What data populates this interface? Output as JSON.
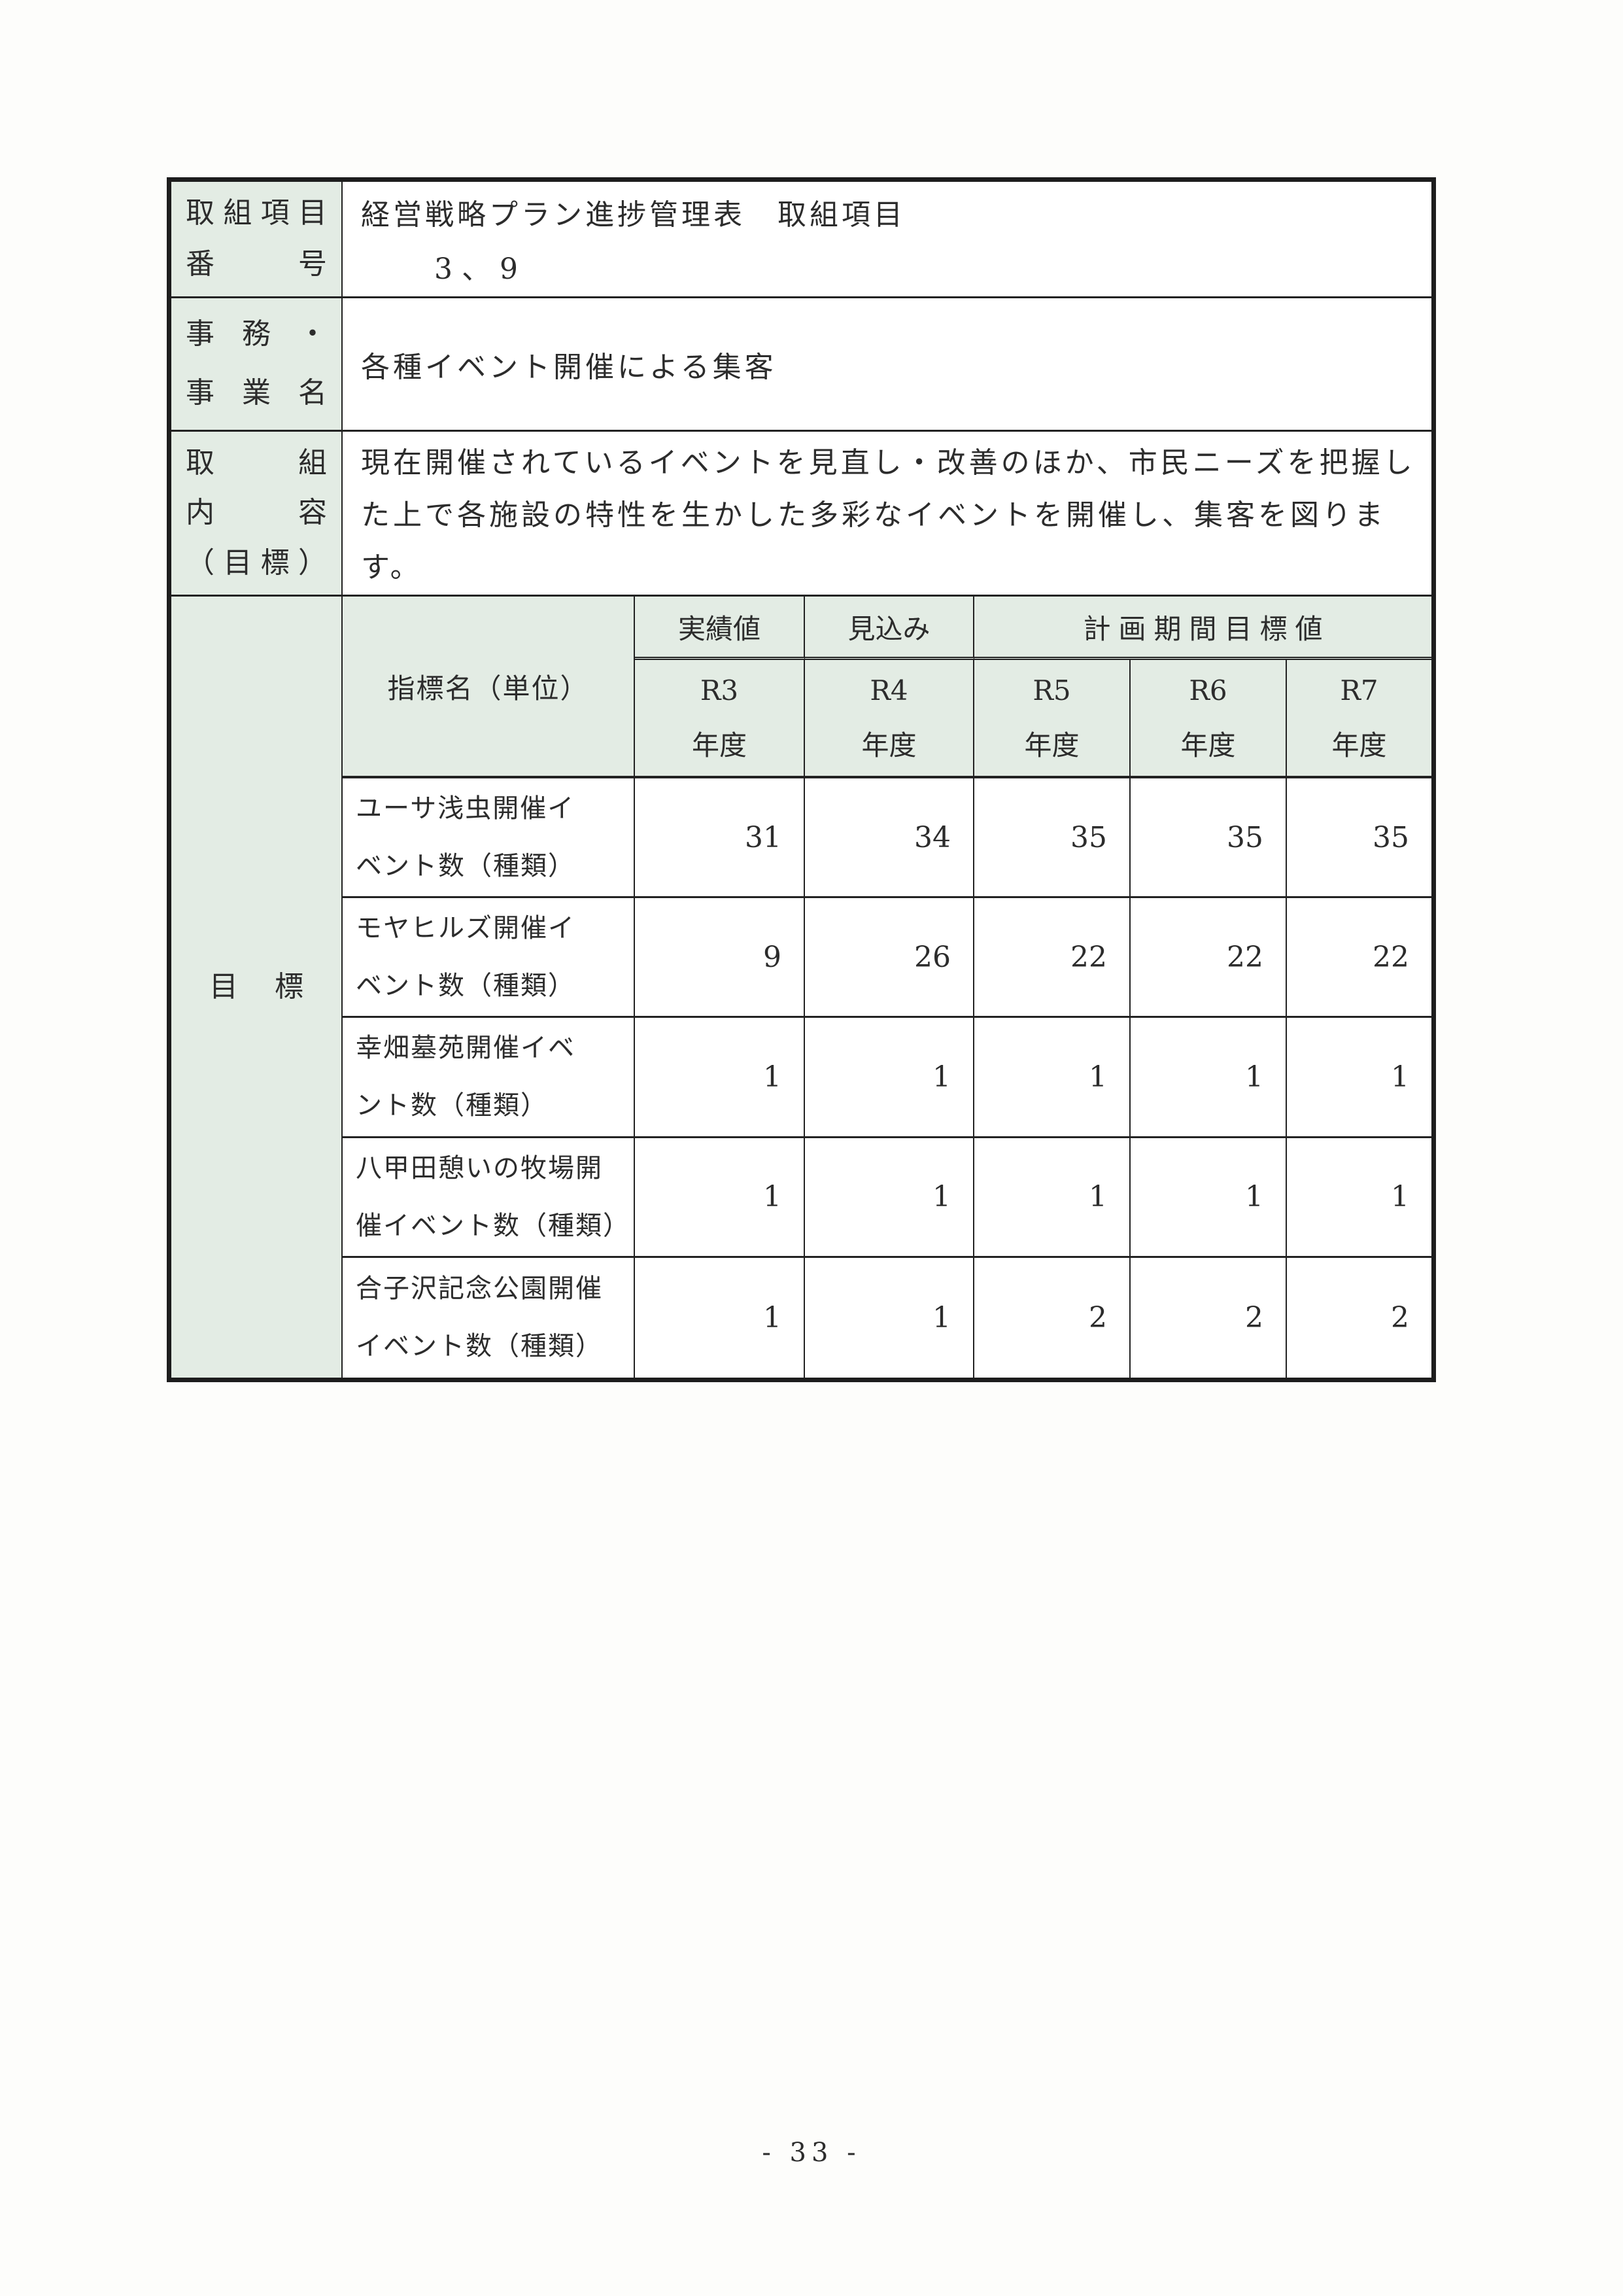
{
  "document": {
    "item_number_row": {
      "label_line1": "取組項目",
      "label_line2": "番号",
      "value_line1": "経営戦略プラン進捗管理表　取組項目",
      "value_line2": "3、9"
    },
    "business_name_row": {
      "label_line1": "事務・",
      "label_line2": "事業名",
      "value": "各種イベント開催による集客"
    },
    "initiative_content_row": {
      "label_line1": "取組",
      "label_line2": "内容",
      "label_line3": "（目標）",
      "value": "現在開催されているイベントを見直し・改善のほか、市民ニーズを把握し\nた上で各施設の特性を生かした多彩なイベントを開催し、集客を図りま\nす。"
    },
    "goals": {
      "section_label": "目標",
      "indicator_header": "指標名（単位）",
      "group_headers": {
        "actual": "実績値",
        "forecast": "見込み",
        "plan_period": "計画期間目標値"
      },
      "year_headers": [
        "R3\n年度",
        "R4\n年度",
        "R5\n年度",
        "R6\n年度",
        "R7\n年度"
      ],
      "rows": [
        {
          "name": "ユーサ浅虫開催イ\nベント数（種類）",
          "values": [
            "31",
            "34",
            "35",
            "35",
            "35"
          ]
        },
        {
          "name": "モヤヒルズ開催イ\nベント数（種類）",
          "values": [
            "9",
            "26",
            "22",
            "22",
            "22"
          ]
        },
        {
          "name": "幸畑墓苑開催イベ\nント数（種類）",
          "values": [
            "1",
            "1",
            "1",
            "1",
            "1"
          ]
        },
        {
          "name": "八甲田憩いの牧場開\n催イベント数（種類）",
          "values": [
            "1",
            "1",
            "1",
            "1",
            "1"
          ]
        },
        {
          "name": "合子沢記念公園開催\nイベント数（種類）",
          "values": [
            "1",
            "1",
            "2",
            "2",
            "2"
          ]
        }
      ]
    },
    "page_number": "- 33 -"
  }
}
